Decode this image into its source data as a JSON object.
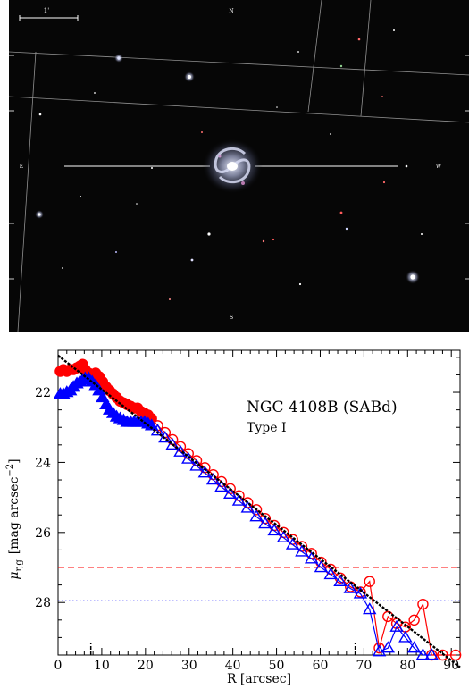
{
  "image_panel": {
    "background": "#060606",
    "scale_label": "1'",
    "compass": {
      "north": "N",
      "south": "S",
      "east": "E",
      "west": "W"
    },
    "galaxy_color": "#a9adc8"
  },
  "chart_data": {
    "type": "scatter",
    "title": "NGC 4108B (SABd)",
    "subtitle": "Type I",
    "xlabel": "R [arcsec]",
    "ylabel": "μ_{r,g} [mag arcsec^{-2}]",
    "ylabel_parts": {
      "mu": "μ",
      "sub": "r,g",
      "text": "[mag arcsec",
      "sup": "−2",
      "close": "]"
    },
    "xlim": [
      0,
      92
    ],
    "ylim": [
      29.5,
      20.8
    ],
    "y_inverted": true,
    "x_ticks": [
      0,
      10,
      20,
      30,
      40,
      50,
      60,
      70,
      80,
      90
    ],
    "y_ticks": [
      22,
      24,
      26,
      28
    ],
    "grid": false,
    "colors": {
      "r": "#ff0000",
      "g": "#0000ff",
      "fit": "#000000"
    },
    "series": [
      {
        "band": "r",
        "marker": "circle",
        "x": [
          0.5,
          1.2,
          2,
          2.8,
          3.5,
          4.3,
          5,
          5.6,
          6.2,
          7,
          7.8,
          8.6,
          9.4,
          10.2,
          11,
          11.8,
          12.6,
          13.4,
          14.2,
          15,
          15.8,
          16.6,
          17.4,
          18.2,
          19,
          19.8,
          20.6,
          21.4,
          22.8,
          24.5,
          26.2,
          28,
          29.8,
          31.7,
          33.6,
          35.5,
          37.4,
          39.4,
          41.4,
          43.4,
          45.4,
          47.4,
          49.5,
          51.6,
          53.7,
          55.8,
          58,
          60.2,
          62.4,
          64.6,
          66.9,
          69.2,
          71.3,
          73.5,
          75.5,
          77.5,
          79.5,
          81.5,
          83.5,
          85.5,
          88,
          91
        ],
        "y": [
          21.4,
          21.35,
          21.4,
          21.35,
          21.35,
          21.3,
          21.25,
          21.2,
          21.35,
          21.45,
          21.5,
          21.45,
          21.55,
          21.7,
          21.85,
          21.95,
          22.05,
          22.15,
          22.25,
          22.3,
          22.35,
          22.4,
          22.45,
          22.45,
          22.55,
          22.6,
          22.65,
          22.75,
          22.95,
          23.15,
          23.35,
          23.55,
          23.75,
          23.95,
          24.15,
          24.35,
          24.55,
          24.75,
          24.95,
          25.15,
          25.35,
          25.6,
          25.8,
          26,
          26.2,
          26.4,
          26.6,
          26.85,
          27.05,
          27.3,
          27.55,
          27.7,
          27.4,
          29.3,
          28.4,
          28.6,
          28.7,
          28.5,
          28.05,
          29.6,
          29.7,
          29.8
        ]
      },
      {
        "band": "g",
        "marker": "triangle",
        "x": [
          0.5,
          1.2,
          2,
          2.8,
          3.5,
          4.3,
          5,
          5.6,
          6.2,
          7,
          7.8,
          8.6,
          9.4,
          10.2,
          11,
          11.8,
          12.6,
          13.4,
          14.2,
          15,
          15.8,
          16.6,
          17.4,
          18.2,
          19,
          19.8,
          20.6,
          21.4,
          22.8,
          24.5,
          26.2,
          28,
          29.8,
          31.7,
          33.6,
          35.5,
          37.4,
          39.4,
          41.4,
          43.4,
          45.4,
          47.4,
          49.5,
          51.6,
          53.7,
          55.8,
          58,
          60.2,
          62.4,
          64.6,
          66.9,
          69.2,
          71.3,
          73.5,
          75.5,
          77.5,
          79.5,
          81.5,
          83.5,
          85.5
        ],
        "y": [
          22.05,
          22.05,
          22.0,
          21.95,
          21.85,
          21.75,
          21.7,
          21.65,
          21.6,
          21.6,
          21.7,
          21.8,
          21.95,
          22.15,
          22.35,
          22.5,
          22.6,
          22.7,
          22.75,
          22.8,
          22.85,
          22.85,
          22.85,
          22.85,
          22.85,
          22.85,
          22.9,
          22.95,
          23.1,
          23.3,
          23.5,
          23.7,
          23.9,
          24.1,
          24.3,
          24.5,
          24.7,
          24.9,
          25.1,
          25.3,
          25.55,
          25.75,
          25.95,
          26.15,
          26.35,
          26.55,
          26.75,
          27.0,
          27.2,
          27.4,
          27.6,
          27.75,
          28.2,
          29.4,
          29.3,
          28.7,
          29.0,
          29.3,
          29.5,
          29.7
        ]
      }
    ],
    "fit": {
      "x": [
        0,
        92
      ],
      "y": [
        20.95,
        29.85
      ]
    },
    "limit_lines": [
      {
        "band": "r",
        "y": 27.0,
        "style": "dashed"
      },
      {
        "band": "g",
        "y": 27.95,
        "style": "dotted"
      }
    ],
    "fit_range_markers": [
      7.5,
      68
    ]
  }
}
